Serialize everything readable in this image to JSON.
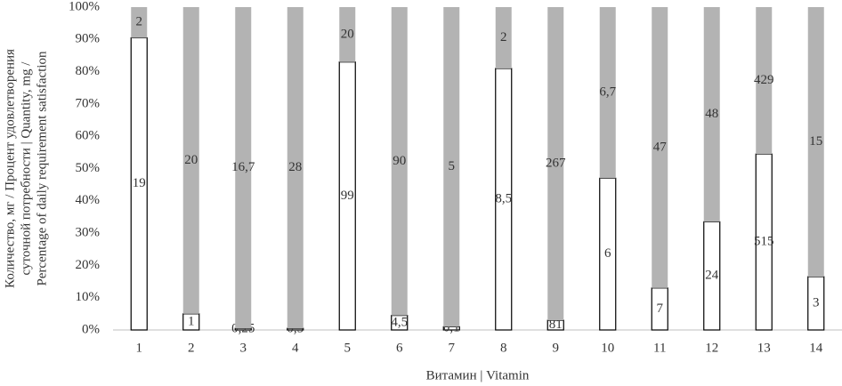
{
  "chart_data": {
    "type": "stacked_bar_100",
    "y_title": [
      "Количество, мг / Процент удовлетворения",
      "суточной потребности | Quantity, mg /",
      "Percentage of daily requirement satisfaction"
    ],
    "x_title": "Витамин | Vitamin",
    "categories": [
      "1",
      "2",
      "3",
      "4",
      "5",
      "6",
      "7",
      "8",
      "9",
      "10",
      "11",
      "12",
      "13",
      "14"
    ],
    "series": [
      {
        "color": "#ffffff",
        "stroke": "#000000",
        "values": [
          90.5,
          5,
          0.5,
          0.5,
          83,
          4.5,
          1,
          81,
          3,
          47,
          13,
          33.5,
          54.5,
          16.5
        ],
        "value_labels": [
          "19",
          "1",
          "0,25",
          "0,5",
          "99",
          "4,5",
          "0,1",
          "8,5",
          "81",
          "6",
          "7",
          "24",
          "515",
          "3"
        ]
      },
      {
        "color": "#b3b3b3",
        "values": [
          9.5,
          95,
          99.5,
          99.5,
          17,
          95.5,
          99,
          19,
          97,
          53,
          87,
          66.5,
          45.5,
          83.5
        ],
        "value_labels": [
          "2",
          "20",
          "16,7",
          "28",
          "20",
          "90",
          "5",
          "2",
          "267",
          "6,7",
          "47",
          "48",
          "429",
          "15"
        ]
      }
    ],
    "ylim": [
      0,
      100
    ],
    "yticks": [
      {
        "value": 0,
        "label": "0%"
      },
      {
        "value": 10,
        "label": "10%"
      },
      {
        "value": 20,
        "label": "20%"
      },
      {
        "value": 30,
        "label": "30%"
      },
      {
        "value": 40,
        "label": "40%"
      },
      {
        "value": 50,
        "label": "50%"
      },
      {
        "value": 60,
        "label": "60%"
      },
      {
        "value": 70,
        "label": "70%"
      },
      {
        "value": 80,
        "label": "80%"
      },
      {
        "value": 90,
        "label": "90%"
      },
      {
        "value": 100,
        "label": "100%"
      }
    ]
  }
}
